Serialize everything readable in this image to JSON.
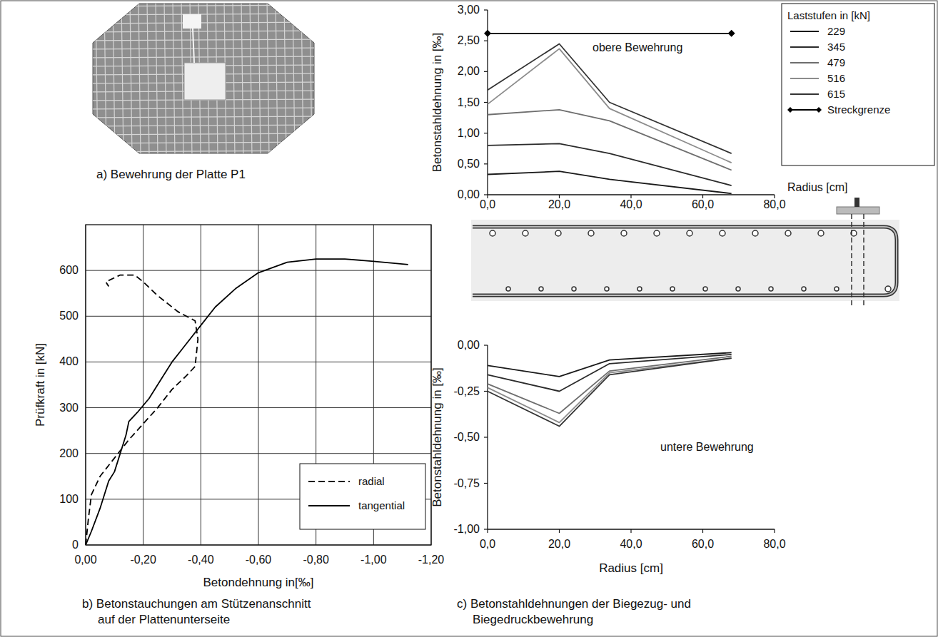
{
  "photo": {
    "caption": "a) Bewehrung der Platte P1"
  },
  "chart_data": [
    {
      "type": "line",
      "caption": [
        "b) Betonstauchungen am Stützenanschnitt",
        "auf der Plattenunterseite"
      ],
      "xlabel": "Betondehnung in[‰]",
      "ylabel": "Prüfkraft in [kN]",
      "xlim": [
        0,
        -1.2
      ],
      "xticks": [
        {
          "value": 0,
          "label": "0,00"
        },
        {
          "value": -0.2,
          "label": "-0,20"
        },
        {
          "value": -0.4,
          "label": "-0,40"
        },
        {
          "value": -0.6,
          "label": "-0,60"
        },
        {
          "value": -0.8,
          "label": "-0,80"
        },
        {
          "value": -1.0,
          "label": "-1,00"
        },
        {
          "value": -1.2,
          "label": "-1,20"
        }
      ],
      "ylim": [
        0,
        700
      ],
      "yticks": [
        0,
        100,
        200,
        300,
        400,
        500,
        600
      ],
      "grid": true,
      "legend": "lower right",
      "series": [
        {
          "name": "radial",
          "color": "#000000",
          "line_style": "dashed",
          "x": [
            0,
            -0.01,
            -0.02,
            -0.05,
            -0.1,
            -0.15,
            -0.2,
            -0.25,
            -0.3,
            -0.35,
            -0.38,
            -0.39,
            -0.38,
            -0.32,
            -0.25,
            -0.2,
            -0.17,
            -0.12,
            -0.07,
            -0.08
          ],
          "values": [
            0,
            60,
            110,
            150,
            190,
            230,
            265,
            300,
            340,
            370,
            390,
            450,
            490,
            510,
            545,
            575,
            590,
            590,
            575,
            565
          ]
        },
        {
          "name": "tangential",
          "color": "#000000",
          "line_style": "solid",
          "x": [
            0,
            -0.02,
            -0.05,
            -0.08,
            -0.1,
            -0.12,
            -0.14,
            -0.15,
            -0.18,
            -0.22,
            -0.26,
            -0.3,
            -0.35,
            -0.4,
            -0.45,
            -0.52,
            -0.6,
            -0.7,
            -0.8,
            -0.9,
            -1.0,
            -1.12
          ],
          "values": [
            0,
            30,
            80,
            140,
            160,
            200,
            240,
            270,
            290,
            320,
            360,
            400,
            440,
            480,
            520,
            560,
            595,
            618,
            625,
            625,
            620,
            613
          ]
        }
      ]
    },
    {
      "type": "line",
      "xlabel": "Radius [cm]",
      "ylabel": "Betonstahldehnung in [‰]",
      "annotation": "obere Bewehrung",
      "legend_title": "Laststufen in  [kN]",
      "legend": "right",
      "grid": false,
      "x": [
        0,
        20,
        34,
        68
      ],
      "xlim": [
        0,
        80
      ],
      "xticks": [
        {
          "value": 0,
          "label": "0,0"
        },
        {
          "value": 20,
          "label": "20,0"
        },
        {
          "value": 40,
          "label": "40,0"
        },
        {
          "value": 60,
          "label": "60,0"
        },
        {
          "value": 80,
          "label": "80,0"
        }
      ],
      "ylim": [
        0,
        3
      ],
      "yticks": [
        {
          "value": 0,
          "label": "0,00"
        },
        {
          "value": 0.5,
          "label": "0,50"
        },
        {
          "value": 1,
          "label": "1,00"
        },
        {
          "value": 1.5,
          "label": "1,50"
        },
        {
          "value": 2,
          "label": "2,00"
        },
        {
          "value": 2.5,
          "label": "2,50"
        },
        {
          "value": 3,
          "label": "3,00"
        }
      ],
      "series": [
        {
          "name": "229",
          "color": "#1a1a1a",
          "line_style": "solid",
          "values": [
            0.33,
            0.38,
            0.25,
            0.02
          ]
        },
        {
          "name": "345",
          "color": "#2b2b2b",
          "line_style": "solid",
          "values": [
            0.8,
            0.83,
            0.67,
            0.15
          ]
        },
        {
          "name": "479",
          "color": "#6e6e6e",
          "line_style": "solid",
          "values": [
            1.3,
            1.38,
            1.2,
            0.4
          ]
        },
        {
          "name": "516",
          "color": "#8c8c8c",
          "line_style": "solid",
          "values": [
            1.47,
            2.37,
            1.4,
            0.52
          ]
        },
        {
          "name": "615",
          "color": "#333333",
          "line_style": "solid",
          "values": [
            1.7,
            2.45,
            1.5,
            0.67
          ]
        },
        {
          "name": "Streckgrenze",
          "color": "#000000",
          "line_style": "solid",
          "marker": "diamond",
          "x": [
            0,
            68
          ],
          "values": [
            2.62,
            2.62
          ]
        }
      ]
    },
    {
      "type": "line",
      "caption": [
        "c) Betonstahldehnungen der Biegezug- und",
        "Biegedruckbewehrung"
      ],
      "xlabel": "Radius [cm]",
      "ylabel": "Betonstahldehnung  in [‰]",
      "annotation": "untere Bewehrung",
      "grid": false,
      "x": [
        0,
        20,
        34,
        68
      ],
      "xlim": [
        0,
        80
      ],
      "xticks": [
        {
          "value": 0,
          "label": "0,0"
        },
        {
          "value": 20,
          "label": "20,0"
        },
        {
          "value": 40,
          "label": "40,0"
        },
        {
          "value": 60,
          "label": "60,0"
        },
        {
          "value": 80,
          "label": "80,0"
        }
      ],
      "ylim": [
        -1,
        0
      ],
      "yticks": [
        {
          "value": -1,
          "label": "-1,00"
        },
        {
          "value": -0.75,
          "label": "-0,75"
        },
        {
          "value": -0.5,
          "label": "-0,50"
        },
        {
          "value": -0.25,
          "label": "-0,25"
        },
        {
          "value": 0,
          "label": "0,00"
        }
      ],
      "series": [
        {
          "color": "#1a1a1a",
          "line_style": "solid",
          "values": [
            -0.11,
            -0.17,
            -0.08,
            -0.04
          ]
        },
        {
          "color": "#2b2b2b",
          "line_style": "solid",
          "values": [
            -0.16,
            -0.25,
            -0.1,
            -0.05
          ]
        },
        {
          "color": "#6e6e6e",
          "line_style": "solid",
          "values": [
            -0.21,
            -0.37,
            -0.14,
            -0.06
          ]
        },
        {
          "color": "#8c8c8c",
          "line_style": "solid",
          "values": [
            -0.23,
            -0.42,
            -0.15,
            -0.07
          ]
        },
        {
          "color": "#333333",
          "line_style": "solid",
          "values": [
            -0.25,
            -0.44,
            -0.16,
            -0.07
          ]
        }
      ]
    }
  ]
}
